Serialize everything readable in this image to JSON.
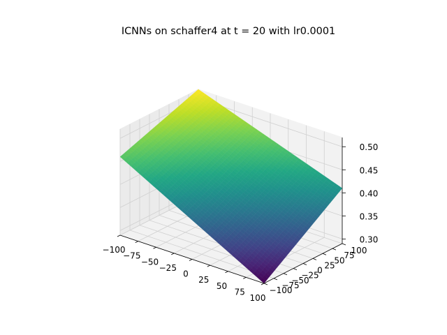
{
  "chart_data": {
    "type": "surface3d",
    "title": "ICNNs on schaffer4 at t = 20 with lr0.0001",
    "colormap": "viridis",
    "x": {
      "label": "",
      "range": [
        -100,
        100
      ],
      "ticks": [
        -100,
        -75,
        -50,
        -25,
        0,
        25,
        50,
        75,
        100
      ],
      "tick_labels": [
        "−100",
        "−75",
        "−50",
        "−25",
        "0",
        "25",
        "50",
        "75",
        "100"
      ]
    },
    "y": {
      "label": "",
      "range": [
        -100,
        100
      ],
      "ticks": [
        -100,
        -75,
        -50,
        -25,
        0,
        25,
        50,
        75,
        100
      ],
      "tick_labels": [
        "−100",
        "−75",
        "−50",
        "−25",
        "0",
        "25",
        "50",
        "75",
        "100"
      ]
    },
    "z": {
      "label": "",
      "range": [
        0.29,
        0.52
      ],
      "ticks": [
        0.3,
        0.35,
        0.4,
        0.45,
        0.5
      ],
      "tick_labels": [
        "0.30",
        "0.35",
        "0.40",
        "0.45",
        "0.50"
      ]
    },
    "corner_values": {
      "x_min_y_min": 0.46,
      "x_min_y_max": 0.52,
      "x_max_y_min": 0.29,
      "x_max_y_max": 0.41
    },
    "grid": true
  }
}
